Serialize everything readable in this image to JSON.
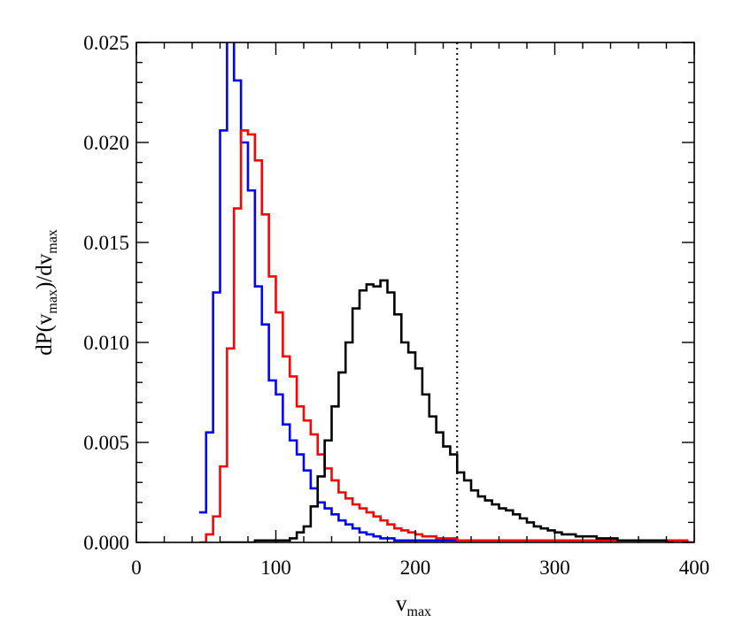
{
  "chart_data": {
    "type": "line",
    "style": "histogram-step",
    "title": "",
    "xlabel": {
      "base": "v",
      "sub": "max"
    },
    "ylabel": {
      "part1": "dP(v",
      "sub1": "max",
      "part2": ")/dv",
      "sub2": "max"
    },
    "xlim": [
      0,
      400
    ],
    "ylim": [
      0,
      0.025
    ],
    "x_ticks": [
      0,
      100,
      200,
      300,
      400
    ],
    "x_tick_labels": [
      "0",
      "100",
      "200",
      "300",
      "400"
    ],
    "y_ticks": [
      0,
      0.005,
      0.01,
      0.015,
      0.02,
      0.025
    ],
    "y_tick_labels": [
      "0.000",
      "0.005",
      "0.010",
      "0.015",
      "0.020",
      "0.025"
    ],
    "grid": false,
    "legend": "none",
    "bin_width": 5,
    "vline": {
      "x": 230,
      "style": "dotted",
      "color": "#000000"
    },
    "series": [
      {
        "color": "#0000ff",
        "x_start": 45,
        "values": [
          0.0015,
          0.0055,
          0.0125,
          0.0206,
          0.0252,
          0.0231,
          0.02,
          0.0176,
          0.0128,
          0.0109,
          0.0081,
          0.0074,
          0.0059,
          0.0051,
          0.0044,
          0.0036,
          0.0027,
          0.002,
          0.0017,
          0.0014,
          0.0011,
          0.0009,
          0.0007,
          0.0005,
          0.0004,
          0.0003,
          0.0002,
          0.0002,
          0.0001,
          0.0001,
          0.0001,
          0.0001,
          0.0001,
          0.0001,
          0.0001,
          0.0001,
          0.0001,
          0.0001,
          0.0001,
          0.0001,
          0.0001,
          0.0001,
          0.0001,
          0.0001,
          0.0001,
          0.0001,
          0.0001,
          0.0001,
          0.0001,
          0.0001,
          0.0001,
          0.0001,
          0.0001,
          0.0001,
          0.0001,
          0.0001,
          0.0001,
          0.0001,
          0.0001,
          0.0001,
          0.0001,
          0.0001,
          0.0001,
          0.0001,
          0.0001,
          0.0001,
          0.0001,
          0.0001,
          0.0001,
          0.0001,
          0
        ]
      },
      {
        "color": "#ff0000",
        "x_start": 45,
        "values": [
          0.0,
          0.0004,
          0.0013,
          0.0038,
          0.0097,
          0.0167,
          0.0206,
          0.0204,
          0.0191,
          0.0164,
          0.0133,
          0.0115,
          0.0093,
          0.0083,
          0.0068,
          0.0061,
          0.0054,
          0.0044,
          0.0037,
          0.0031,
          0.0025,
          0.0022,
          0.0019,
          0.0017,
          0.0015,
          0.0013,
          0.0011,
          0.0009,
          0.0007,
          0.0006,
          0.0005,
          0.0004,
          0.0003,
          0.0003,
          0.0002,
          0.0002,
          0.0002,
          0.0001,
          0.0001,
          0.0001,
          0.0001,
          0.0001,
          0.0001,
          0.0001,
          0.0001,
          0.0001,
          0.0001,
          0.0001,
          0.0001,
          0.0001,
          0.0001,
          0.0001,
          0.0001,
          0.0001,
          0.0001,
          0.0001,
          0.0001,
          0.0001,
          0.0001,
          0.0001,
          0.0001,
          0.0001,
          0.0001,
          0.0001,
          0.0001,
          0.0001,
          0.0001,
          0.0001,
          0.0001,
          0.0001,
          0
        ]
      },
      {
        "color": "#000000",
        "x_start": 60,
        "values": [
          0.0,
          0.0,
          0.0,
          0.0,
          0.0,
          0.0001,
          0.0001,
          0.0001,
          0.0001,
          0.0001,
          0.0002,
          0.0005,
          0.0008,
          0.0018,
          0.0033,
          0.0051,
          0.0068,
          0.0085,
          0.01,
          0.0117,
          0.0126,
          0.0129,
          0.0128,
          0.0131,
          0.0125,
          0.0114,
          0.01,
          0.0095,
          0.0087,
          0.0074,
          0.0063,
          0.0055,
          0.0048,
          0.0044,
          0.0035,
          0.0031,
          0.0026,
          0.0023,
          0.0021,
          0.0019,
          0.0017,
          0.0016,
          0.0014,
          0.0012,
          0.001,
          0.0008,
          0.0007,
          0.0006,
          0.0005,
          0.0004,
          0.0004,
          0.0003,
          0.0003,
          0.0003,
          0.0002,
          0.0002,
          0.0002,
          0.0001,
          0.0001,
          0.0001,
          0.0001,
          0.0001,
          0.0001,
          0.0001,
          0
        ]
      }
    ]
  }
}
